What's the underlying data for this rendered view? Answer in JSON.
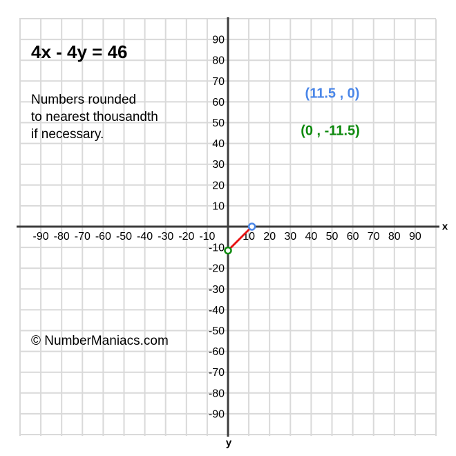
{
  "page": {
    "background_color": "#ffffff"
  },
  "chart_data": {
    "type": "line",
    "title": "4x - 4y = 46",
    "note_lines": [
      "Numbers rounded",
      "to nearest thousandth",
      "if necessary."
    ],
    "x_axis_label": "x",
    "y_axis_label": "y",
    "axis_range": [
      -100,
      100
    ],
    "grid": true,
    "tick_step": 10,
    "x_ticks": [
      -90,
      -80,
      -70,
      -60,
      -50,
      -40,
      -30,
      -20,
      -10,
      10,
      20,
      30,
      40,
      50,
      60,
      70,
      80,
      90
    ],
    "y_ticks": [
      90,
      80,
      70,
      60,
      50,
      40,
      30,
      20,
      10,
      -10,
      -20,
      -30,
      -40,
      -50,
      -60,
      -70,
      -80,
      -90
    ],
    "series": [
      {
        "name": "4x - 4y = 46",
        "color": "#e81515",
        "points": [
          {
            "x": 0,
            "y": -11.5
          },
          {
            "x": 11.5,
            "y": 0
          }
        ]
      }
    ],
    "intercepts": {
      "x_intercept": {
        "x": 11.5,
        "y": 0,
        "label": "(11.5 , 0)",
        "color": "#4a86e8"
      },
      "y_intercept": {
        "x": 0,
        "y": -11.5,
        "label": "(0 , -11.5)",
        "color": "#0f8a0f"
      }
    },
    "watermark": "© NumberManiacs.com",
    "colors": {
      "grid": "#d9d9d9",
      "axis": "#3c3c3c",
      "tick_text": "#000000",
      "segment": "#e81515",
      "x_intercept_point": "#4a86e8",
      "y_intercept_point": "#0f8a0f",
      "point_fill": "#ffffff"
    }
  }
}
